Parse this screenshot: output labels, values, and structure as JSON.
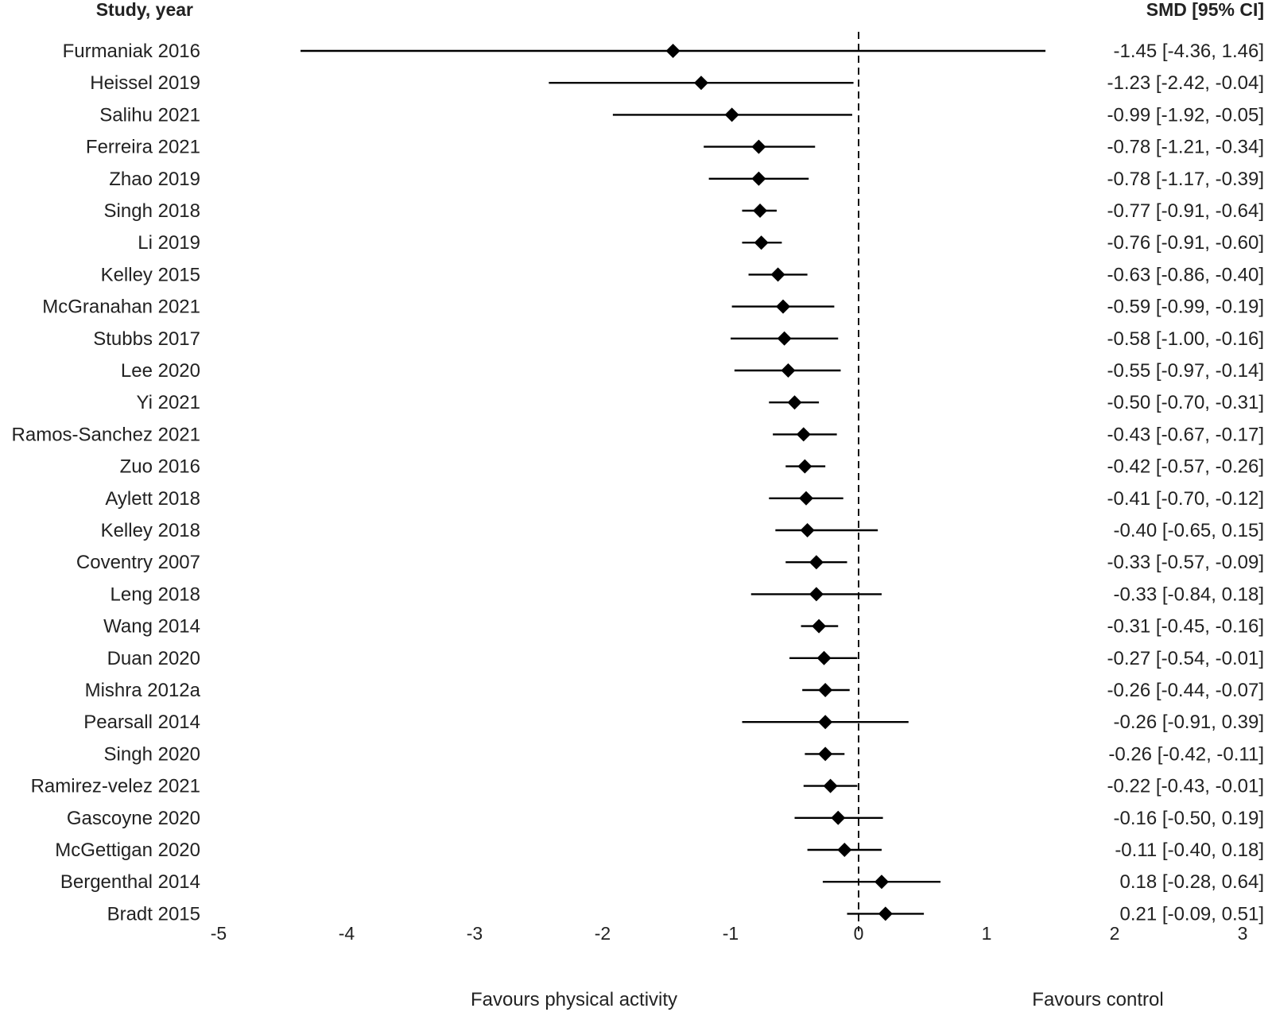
{
  "headers": {
    "study": "Study, year",
    "smd": "SMD [95% CI]"
  },
  "favours": {
    "left": "Favours physical activity",
    "right": "Favours control"
  },
  "chart_data": {
    "type": "forest",
    "xlim": [
      -5,
      3
    ],
    "x_ticks": [
      -5,
      -4,
      -3,
      -2,
      -1,
      0,
      1,
      2,
      3
    ],
    "reference_line": 0,
    "studies": [
      {
        "name": "Furmaniak 2016",
        "smd": -1.45,
        "lower": -4.36,
        "upper": 1.46,
        "label": "-1.45 [-4.36, 1.46]"
      },
      {
        "name": "Heissel 2019",
        "smd": -1.23,
        "lower": -2.42,
        "upper": -0.04,
        "label": "-1.23 [-2.42, -0.04]"
      },
      {
        "name": "Salihu 2021",
        "smd": -0.99,
        "lower": -1.92,
        "upper": -0.05,
        "label": "-0.99 [-1.92, -0.05]"
      },
      {
        "name": "Ferreira 2021",
        "smd": -0.78,
        "lower": -1.21,
        "upper": -0.34,
        "label": "-0.78 [-1.21, -0.34]"
      },
      {
        "name": "Zhao 2019",
        "smd": -0.78,
        "lower": -1.17,
        "upper": -0.39,
        "label": "-0.78 [-1.17, -0.39]"
      },
      {
        "name": "Singh 2018",
        "smd": -0.77,
        "lower": -0.91,
        "upper": -0.64,
        "label": "-0.77 [-0.91, -0.64]"
      },
      {
        "name": "Li 2019",
        "smd": -0.76,
        "lower": -0.91,
        "upper": -0.6,
        "label": "-0.76 [-0.91, -0.60]"
      },
      {
        "name": "Kelley 2015",
        "smd": -0.63,
        "lower": -0.86,
        "upper": -0.4,
        "label": "-0.63 [-0.86, -0.40]"
      },
      {
        "name": "McGranahan 2021",
        "smd": -0.59,
        "lower": -0.99,
        "upper": -0.19,
        "label": "-0.59 [-0.99, -0.19]"
      },
      {
        "name": "Stubbs 2017",
        "smd": -0.58,
        "lower": -1.0,
        "upper": -0.16,
        "label": "-0.58 [-1.00, -0.16]"
      },
      {
        "name": "Lee 2020",
        "smd": -0.55,
        "lower": -0.97,
        "upper": -0.14,
        "label": "-0.55 [-0.97, -0.14]"
      },
      {
        "name": "Yi 2021",
        "smd": -0.5,
        "lower": -0.7,
        "upper": -0.31,
        "label": "-0.50 [-0.70, -0.31]"
      },
      {
        "name": "Ramos-Sanchez 2021",
        "smd": -0.43,
        "lower": -0.67,
        "upper": -0.17,
        "label": "-0.43 [-0.67, -0.17]"
      },
      {
        "name": "Zuo 2016",
        "smd": -0.42,
        "lower": -0.57,
        "upper": -0.26,
        "label": "-0.42 [-0.57, -0.26]"
      },
      {
        "name": "Aylett 2018",
        "smd": -0.41,
        "lower": -0.7,
        "upper": -0.12,
        "label": "-0.41 [-0.70, -0.12]"
      },
      {
        "name": "Kelley 2018",
        "smd": -0.4,
        "lower": -0.65,
        "upper": 0.15,
        "label": "-0.40 [-0.65, 0.15]"
      },
      {
        "name": "Coventry 2007",
        "smd": -0.33,
        "lower": -0.57,
        "upper": -0.09,
        "label": "-0.33 [-0.57, -0.09]"
      },
      {
        "name": "Leng 2018",
        "smd": -0.33,
        "lower": -0.84,
        "upper": 0.18,
        "label": "-0.33 [-0.84, 0.18]"
      },
      {
        "name": "Wang 2014",
        "smd": -0.31,
        "lower": -0.45,
        "upper": -0.16,
        "label": "-0.31 [-0.45, -0.16]"
      },
      {
        "name": "Duan 2020",
        "smd": -0.27,
        "lower": -0.54,
        "upper": -0.01,
        "label": "-0.27 [-0.54, -0.01]"
      },
      {
        "name": "Mishra 2012a",
        "smd": -0.26,
        "lower": -0.44,
        "upper": -0.07,
        "label": "-0.26 [-0.44, -0.07]"
      },
      {
        "name": "Pearsall 2014",
        "smd": -0.26,
        "lower": -0.91,
        "upper": 0.39,
        "label": "-0.26 [-0.91, 0.39]"
      },
      {
        "name": "Singh 2020",
        "smd": -0.26,
        "lower": -0.42,
        "upper": -0.11,
        "label": "-0.26 [-0.42, -0.11]"
      },
      {
        "name": "Ramirez-velez 2021",
        "smd": -0.22,
        "lower": -0.43,
        "upper": -0.01,
        "label": "-0.22 [-0.43, -0.01]"
      },
      {
        "name": "Gascoyne 2020",
        "smd": -0.16,
        "lower": -0.5,
        "upper": 0.19,
        "label": "-0.16 [-0.50, 0.19]"
      },
      {
        "name": "McGettigan 2020",
        "smd": -0.11,
        "lower": -0.4,
        "upper": 0.18,
        "label": "-0.11 [-0.40, 0.18]"
      },
      {
        "name": "Bergenthal 2014",
        "smd": 0.18,
        "lower": -0.28,
        "upper": 0.64,
        "label": "0.18 [-0.28, 0.64]"
      },
      {
        "name": "Bradt 2015",
        "smd": 0.21,
        "lower": -0.09,
        "upper": 0.51,
        "label": "0.21 [-0.09, 0.51]"
      }
    ]
  }
}
